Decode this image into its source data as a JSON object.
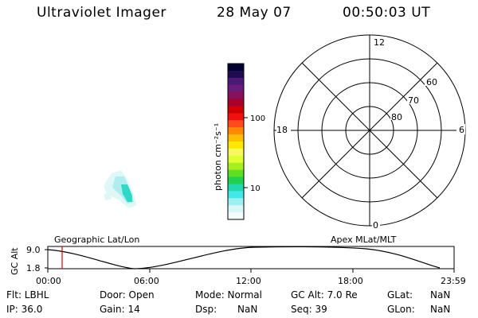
{
  "header": {
    "title": "Ultraviolet Imager",
    "date": "28 May 07",
    "time": "00:50:03 UT"
  },
  "colorbar": {
    "label": "photon cm⁻²s⁻¹",
    "ticks": [
      "100",
      "10"
    ],
    "colors": [
      "#000032",
      "#1e0b50",
      "#4c1a74",
      "#6a1b7c",
      "#87105a",
      "#a8002a",
      "#d10000",
      "#f01010",
      "#ff4c1a",
      "#ff8a00",
      "#ffbf00",
      "#ffe800",
      "#f7f760",
      "#e0ff30",
      "#a6f020",
      "#5ee020",
      "#20d050",
      "#22d8b0",
      "#40e8e8",
      "#9ef0f0",
      "#d8f8f8",
      "#f4fcfc"
    ]
  },
  "polar": {
    "mlt_labels": {
      "top": "12",
      "left": "18",
      "right": "6",
      "bottom": "0"
    },
    "lat_labels": [
      "60",
      "70",
      "80"
    ]
  },
  "track": {
    "left_title": "Geographic Lat/Lon",
    "right_title": "Apex MLat/MLT",
    "y_label": "GC Alt",
    "y_ticks": [
      "9.0",
      "1.8"
    ],
    "x_ticks": [
      "00:00",
      "06:00",
      "12:00",
      "18:00",
      "23:59"
    ],
    "marker_time": "00:50"
  },
  "info": {
    "row1": {
      "flt": "Flt: LBHL",
      "door": "Door: Open",
      "mode": "Mode: Normal",
      "gcalt": "GC Alt: 7.0 Re",
      "glat_label": "GLat:",
      "glat_val": "NaN"
    },
    "row2": {
      "ip": "IP: 36.0",
      "gain": "Gain: 14",
      "dsp_label": "Dsp:",
      "dsp_val": "NaN",
      "seq": "Seq: 39",
      "glon_label": "GLon:",
      "glon_val": "NaN"
    }
  }
}
